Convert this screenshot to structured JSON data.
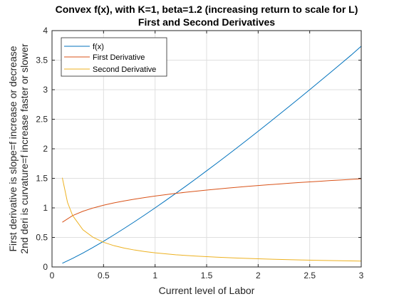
{
  "chart_data": {
    "type": "line",
    "title": "Convex f(x), with K=1, beta=1.2 (increasing return to scale for L)",
    "subtitle": "First and Second Derivatives",
    "xlabel": "Current level of Labor",
    "ylabel": [
      "First derivative is slope=f increase or decrease",
      "2nd deri is curvature=f increase faster or slower"
    ],
    "xlim": [
      0,
      3
    ],
    "ylim": [
      0,
      4
    ],
    "xticks": [
      0,
      0.5,
      1,
      1.5,
      2,
      2.5,
      3
    ],
    "xtick_labels": [
      "0",
      "0.5",
      "1",
      "1.5",
      "2",
      "2.5",
      "3"
    ],
    "yticks": [
      0,
      0.5,
      1,
      1.5,
      2,
      2.5,
      3,
      3.5,
      4
    ],
    "ytick_labels": [
      "0",
      "0.5",
      "1",
      "1.5",
      "2",
      "2.5",
      "3",
      "3.5",
      "4"
    ],
    "grid": true,
    "legend_position": "top-left",
    "series": [
      {
        "name": "f(x)",
        "color": "#0072BD",
        "x": [
          0.1,
          0.2,
          0.3,
          0.4,
          0.5,
          0.6,
          0.7,
          0.8,
          0.9,
          1.0,
          1.1,
          1.2,
          1.3,
          1.4,
          1.5,
          1.6,
          1.7,
          1.8,
          1.9,
          2.0,
          2.1,
          2.2,
          2.3,
          2.4,
          2.5,
          2.6,
          2.7,
          2.8,
          2.9,
          3.0
        ],
        "y": [
          0.063,
          0.145,
          0.236,
          0.333,
          0.435,
          0.542,
          0.652,
          0.765,
          0.881,
          1.0,
          1.121,
          1.245,
          1.37,
          1.497,
          1.627,
          1.758,
          1.89,
          2.024,
          2.16,
          2.297,
          2.435,
          2.575,
          2.715,
          2.857,
          3.0,
          3.144,
          3.289,
          3.435,
          3.582,
          3.737
        ]
      },
      {
        "name": "First Derivative",
        "color": "#D95319",
        "x": [
          0.1,
          0.2,
          0.3,
          0.4,
          0.5,
          0.6,
          0.7,
          0.8,
          0.9,
          1.0,
          1.1,
          1.2,
          1.3,
          1.4,
          1.5,
          1.6,
          1.7,
          1.8,
          1.9,
          2.0,
          2.1,
          2.2,
          2.3,
          2.4,
          2.5,
          2.6,
          2.7,
          2.8,
          2.9,
          3.0
        ],
        "y": [
          0.757,
          0.87,
          0.943,
          0.999,
          1.045,
          1.084,
          1.118,
          1.148,
          1.175,
          1.2,
          1.223,
          1.245,
          1.265,
          1.283,
          1.301,
          1.318,
          1.334,
          1.349,
          1.364,
          1.378,
          1.391,
          1.404,
          1.417,
          1.429,
          1.44,
          1.451,
          1.462,
          1.472,
          1.482,
          1.492
        ]
      },
      {
        "name": "Second Derivative",
        "color": "#EDB120",
        "x": [
          0.1,
          0.15,
          0.2,
          0.3,
          0.4,
          0.5,
          0.6,
          0.7,
          0.8,
          0.9,
          1.0,
          1.2,
          1.4,
          1.6,
          1.8,
          2.0,
          2.2,
          2.4,
          2.6,
          2.8,
          3.0
        ],
        "y": [
          1.51,
          1.095,
          0.87,
          0.629,
          0.5,
          0.418,
          0.361,
          0.319,
          0.287,
          0.261,
          0.24,
          0.207,
          0.183,
          0.165,
          0.15,
          0.138,
          0.128,
          0.119,
          0.112,
          0.105,
          0.1
        ]
      }
    ]
  }
}
